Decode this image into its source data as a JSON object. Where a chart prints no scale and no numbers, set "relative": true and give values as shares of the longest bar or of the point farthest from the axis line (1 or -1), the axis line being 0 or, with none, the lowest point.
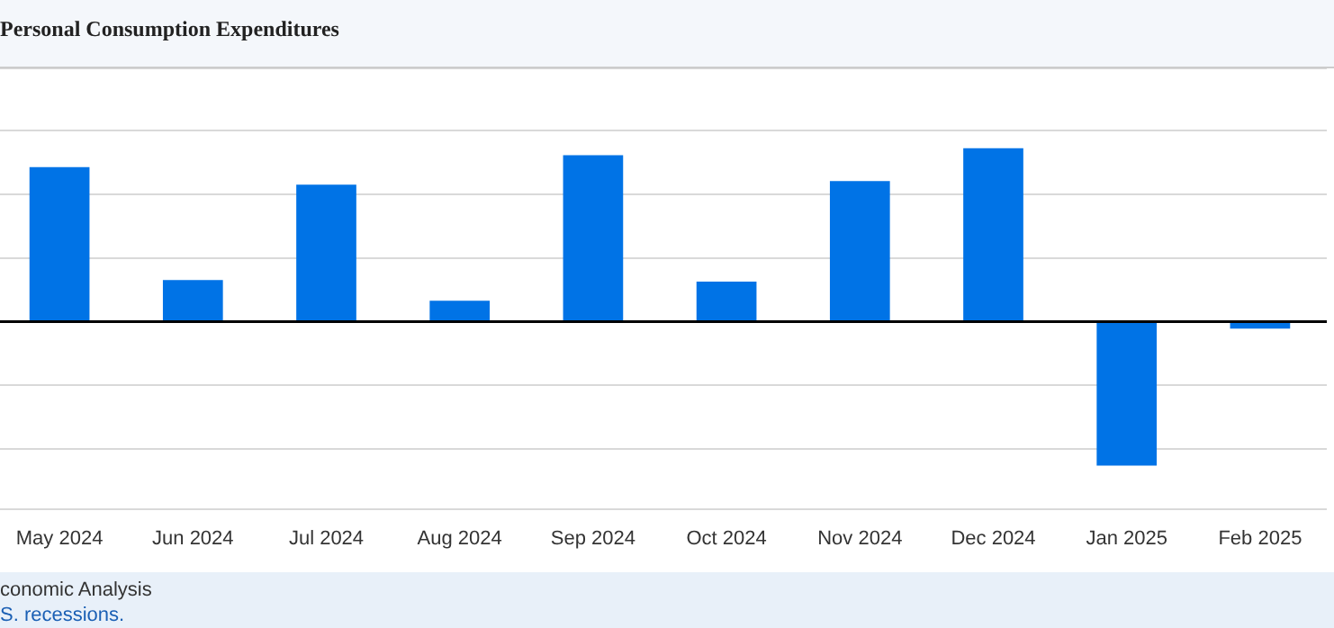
{
  "chart_data": {
    "type": "bar",
    "title": "Personal Consumption Expenditures",
    "relative": true,
    "grid": "y",
    "color": "#0073e6",
    "categories": [
      "May 2024",
      "Jun 2024",
      "Jul 2024",
      "Aug 2024",
      "Sep 2024",
      "Oct 2024",
      "Nov 2024",
      "Dec 2024",
      "Jan 2025",
      "Feb 2025"
    ],
    "values": [
      0.89,
      0.24,
      0.79,
      0.12,
      0.96,
      0.23,
      0.81,
      1,
      -0.83,
      -0.04
    ],
    "annotations": [
      "conomic Analysis",
      "S. recessions."
    ]
  }
}
